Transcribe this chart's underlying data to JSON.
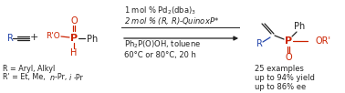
{
  "bg_color": "#ffffff",
  "blue": "#2244aa",
  "red": "#cc2200",
  "black": "#222222",
  "condition1": "1 mol % Pd$_2$(dba)$_3$",
  "condition2": "2 mol % ($R$, $R$)-QuinoxP*",
  "condition3": "Ph$_2$P(O)OH, toluene",
  "condition4": "60°C or 80°C, 20 h",
  "note1": "25 examples",
  "note2": "up to 94% yield",
  "note3": "up to 86% ee",
  "fs_main": 7.0,
  "fs_small": 6.0,
  "fs_label": 5.8
}
